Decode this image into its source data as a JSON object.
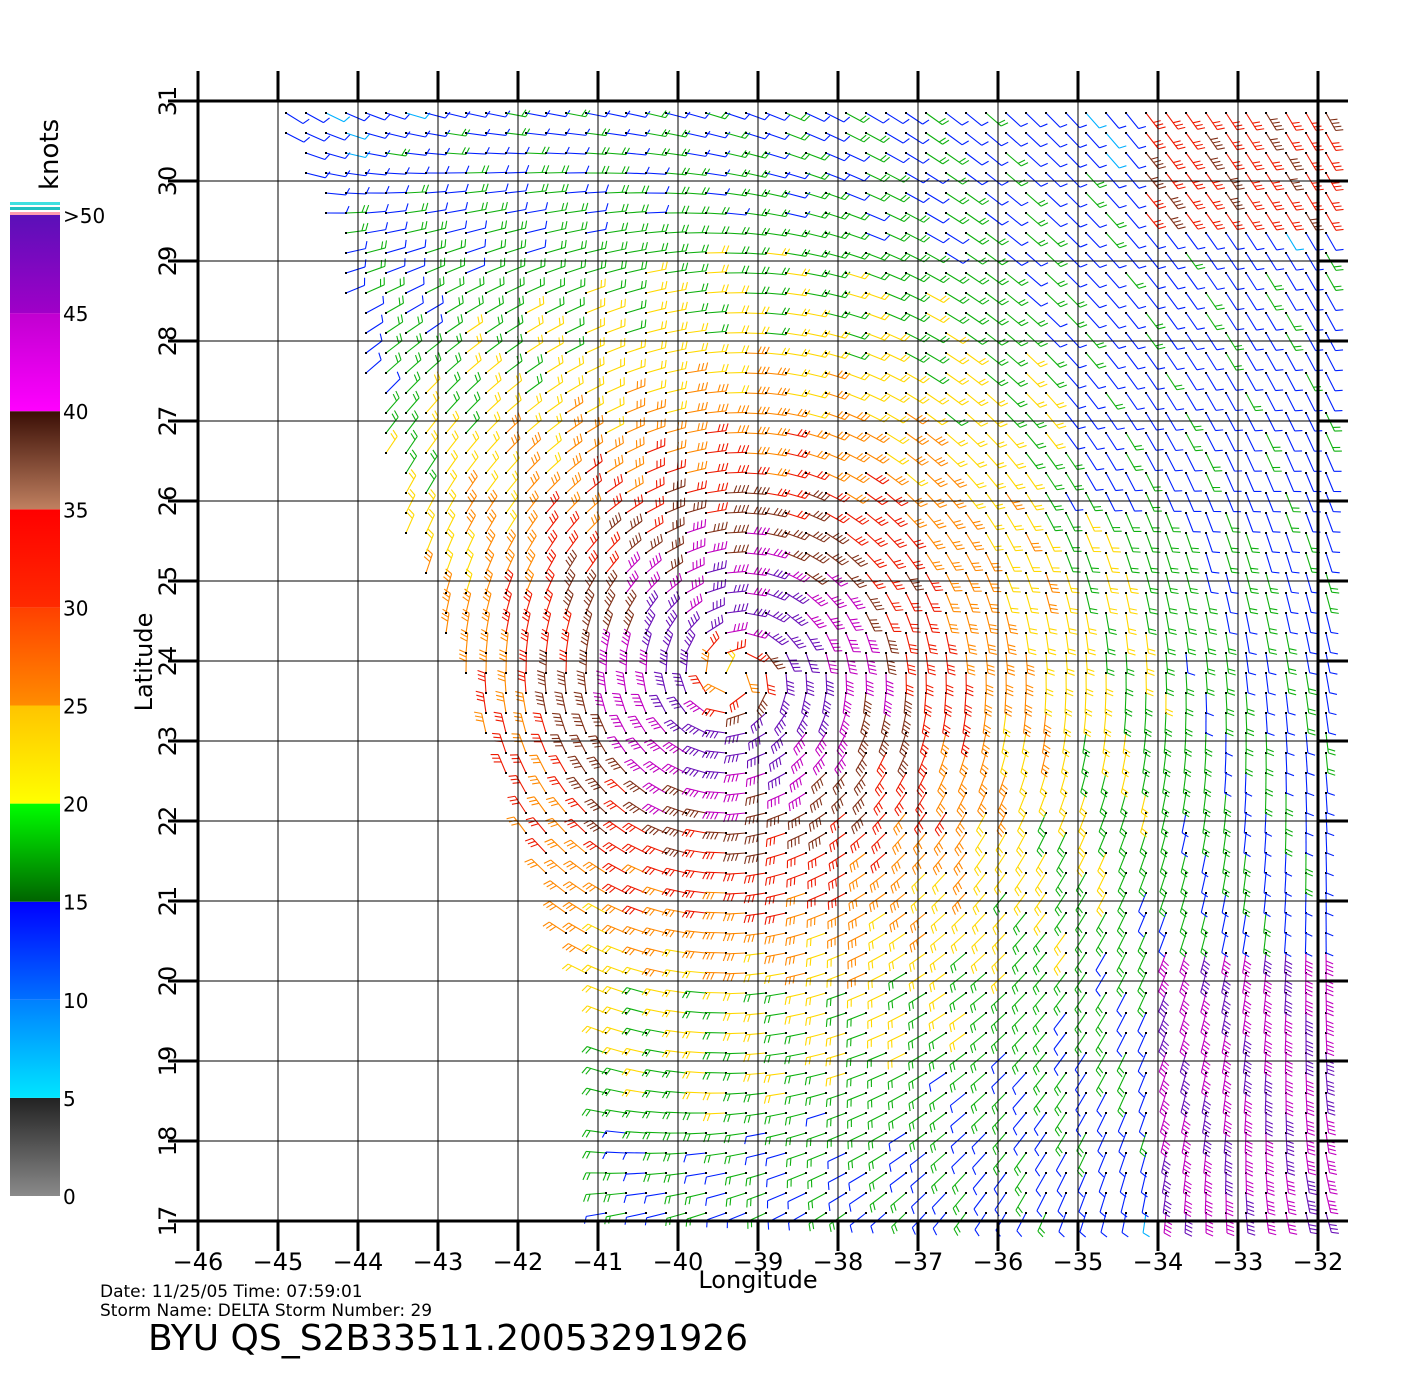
{
  "plot": {
    "x_axis_label": "Longitude",
    "y_axis_label": "Latitude",
    "lon_range": [
      -46,
      -32
    ],
    "lat_range": [
      17,
      31
    ],
    "lon_ticks": [
      -46,
      -45,
      -44,
      -43,
      -42,
      -41,
      -40,
      -39,
      -38,
      -37,
      -36,
      -35,
      -34,
      -33,
      -32
    ],
    "lat_ticks": [
      17,
      18,
      19,
      20,
      21,
      22,
      23,
      24,
      25,
      26,
      27,
      28,
      29,
      30,
      31
    ],
    "grid": true
  },
  "storm": {
    "center_lon": -39.3,
    "center_lat": 23.8,
    "rotation": "cyclonic"
  },
  "colorbar": {
    "title": "knots",
    "tick_labels": [
      "0",
      "5",
      "10",
      "15",
      "20",
      "25",
      "30",
      "35",
      "40",
      "45",
      ">50"
    ],
    "segments": [
      {
        "from": 0,
        "to": 5,
        "colors": [
          "#8a8a8a",
          "#222222"
        ]
      },
      {
        "from": 5,
        "to": 10,
        "colors": [
          "#00e6ff",
          "#0080ff"
        ]
      },
      {
        "from": 10,
        "to": 15,
        "colors": [
          "#0070ff",
          "#0000ff"
        ]
      },
      {
        "from": 15,
        "to": 20,
        "colors": [
          "#006400",
          "#00ff00"
        ]
      },
      {
        "from": 20,
        "to": 25,
        "colors": [
          "#ffff00",
          "#ffc400"
        ]
      },
      {
        "from": 25,
        "to": 30,
        "colors": [
          "#ff8c00",
          "#ff4000"
        ]
      },
      {
        "from": 30,
        "to": 35,
        "colors": [
          "#ff2a00",
          "#ff0000"
        ]
      },
      {
        "from": 35,
        "to": 40,
        "colors": [
          "#c08060",
          "#3a0e05"
        ]
      },
      {
        "from": 40,
        "to": 45,
        "colors": [
          "#ff00ff",
          "#c000d0"
        ]
      },
      {
        "from": 45,
        "to": 50,
        "colors": [
          "#a000c8",
          "#5a10b8"
        ]
      }
    ]
  },
  "info": {
    "date_line": "Date: 11/25/05   Time: 07:59:01",
    "storm_line": "Storm Name: DELTA   Storm Number: 29",
    "file_id": "BYU QS_S2B33511.20053291926"
  }
}
